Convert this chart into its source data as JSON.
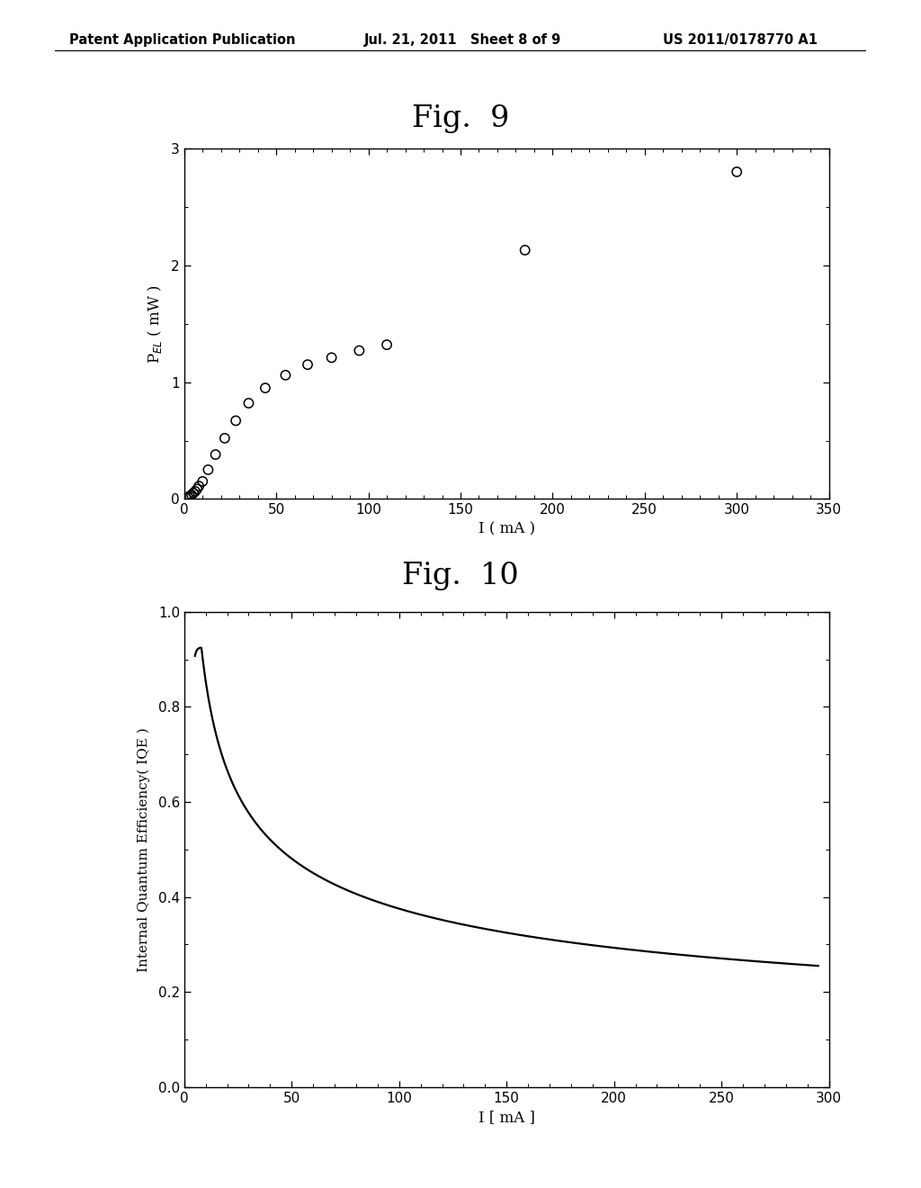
{
  "fig9_title": "Fig.  9",
  "fig10_title": "Fig.  10",
  "header_left": "Patent Application Publication",
  "header_mid": "Jul. 21, 2011   Sheet 8 of 9",
  "header_right": "US 2011/0178770 A1",
  "fig9": {
    "scatter_x": [
      1,
      2,
      3,
      4,
      5,
      6,
      7,
      8,
      10,
      13,
      17,
      22,
      28,
      35,
      44,
      55,
      67,
      80,
      95,
      110,
      185,
      300
    ],
    "scatter_y": [
      0.01,
      0.015,
      0.025,
      0.035,
      0.05,
      0.065,
      0.085,
      0.11,
      0.15,
      0.25,
      0.38,
      0.52,
      0.67,
      0.82,
      0.95,
      1.06,
      1.15,
      1.21,
      1.27,
      1.32,
      2.13,
      2.8
    ],
    "xlabel": "I ( mA )",
    "ylabel": "P$_{EL}$ ( mW )",
    "xlim": [
      0,
      350
    ],
    "ylim": [
      0,
      3
    ],
    "xticks": [
      0,
      50,
      100,
      150,
      200,
      250,
      300,
      350
    ],
    "yticks": [
      0,
      1,
      2,
      3
    ]
  },
  "fig10": {
    "xlabel": "I [ mA ]",
    "ylabel": "Internal Quantum Efficiency( IQE )",
    "xlim": [
      0,
      300
    ],
    "ylim": [
      0.0,
      1.0
    ],
    "xticks": [
      0,
      50,
      100,
      150,
      200,
      250,
      300
    ],
    "yticks": [
      0.0,
      0.2,
      0.4,
      0.6,
      0.8,
      1.0
    ],
    "curve_start": 5,
    "curve_end": 295,
    "peak_x": 8,
    "peak_y": 0.925,
    "end_y": 0.255
  },
  "background_color": "#ffffff",
  "text_color": "#000000"
}
